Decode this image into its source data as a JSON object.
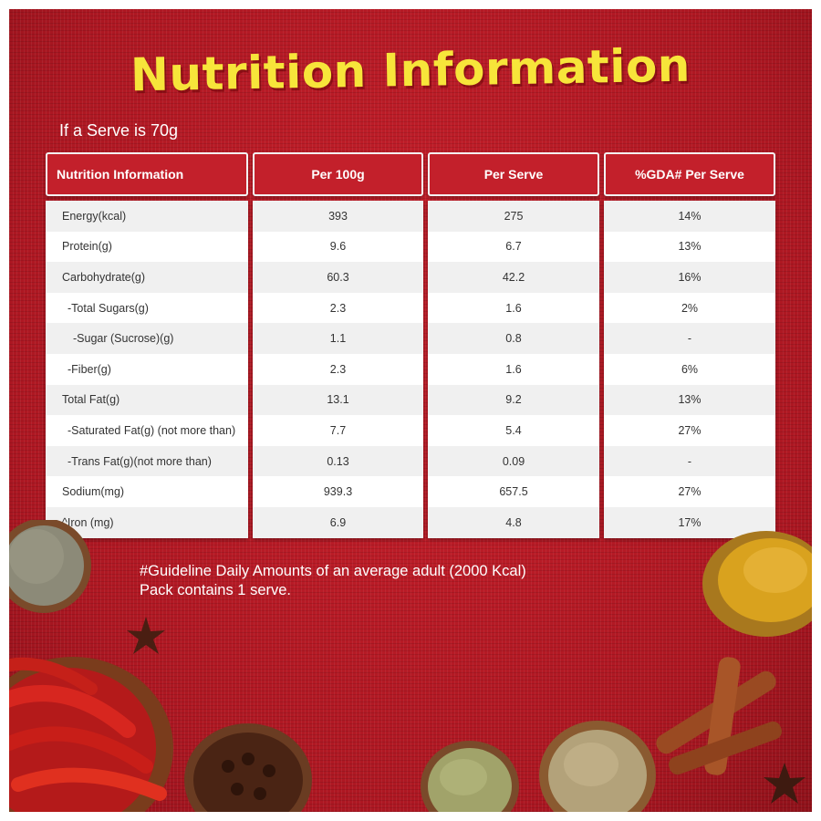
{
  "title": "Nutrition Information",
  "serve_note": "If a Serve is 70g",
  "table": {
    "headers": [
      "Nutrition Information",
      "Per 100g",
      "Per Serve",
      "%GDA# Per Serve"
    ],
    "rows": [
      {
        "name": "Energy(kcal)",
        "per100": "393",
        "perServe": "275",
        "gda": "14%"
      },
      {
        "name": "Protein(g)",
        "per100": "9.6",
        "perServe": "6.7",
        "gda": "13%"
      },
      {
        "name": "Carbohydrate(g)",
        "per100": "60.3",
        "perServe": "42.2",
        "gda": "16%"
      },
      {
        "name": "-Total Sugars(g)",
        "per100": "2.3",
        "perServe": "1.6",
        "gda": "2%"
      },
      {
        "name": "-Sugar (Sucrose)(g)",
        "per100": "1.1",
        "perServe": "0.8",
        "gda": "-"
      },
      {
        "name": "-Fiber(g)",
        "per100": "2.3",
        "perServe": "1.6",
        "gda": "6%"
      },
      {
        "name": "Total Fat(g)",
        "per100": "13.1",
        "perServe": "9.2",
        "gda": "13%"
      },
      {
        "name": "-Saturated Fat(g) (not more than)",
        "per100": "7.7",
        "perServe": "5.4",
        "gda": "27%"
      },
      {
        "name": "-Trans Fat(g)(not more than)",
        "per100": "0.13",
        "perServe": "0.09",
        "gda": "-"
      },
      {
        "name": "Sodium(mg)",
        "per100": "939.3",
        "perServe": "657.5",
        "gda": "27%"
      },
      {
        "name": "^Iron (mg)",
        "per100": "6.9",
        "perServe": "4.8",
        "gda": "17%"
      }
    ]
  },
  "footnote": {
    "line1": "#Guideline Daily Amounts of an average adult (2000 Kcal)",
    "line2": "Pack contains 1 serve."
  },
  "colors": {
    "background": "#b81a25",
    "title": "#f7e53a",
    "header": "#c3202b"
  },
  "decorations": [
    "cumin-bowl-icon",
    "chili-bowl-icon",
    "clove-bowl-icon",
    "fennel-bowl-icon",
    "coriander-bowl-icon",
    "turmeric-bowl-icon",
    "cinnamon-stick-icon",
    "star-anise-icon"
  ]
}
